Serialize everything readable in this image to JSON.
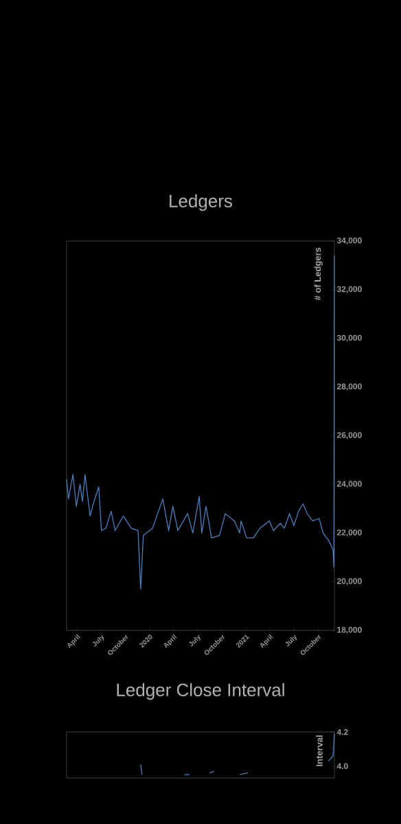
{
  "chart_data": [
    {
      "type": "line",
      "title": "Ledgers",
      "ylabel": "# of Ledgers",
      "color": "#4a7fc1",
      "x": [
        "2019-02-20",
        "2019-02-27",
        "2019-03-16",
        "2019-03-29",
        "2019-04-12",
        "2019-04-21",
        "2019-05-01",
        "2019-05-20",
        "2019-06-04",
        "2019-06-22",
        "2019-07-02",
        "2019-07-19",
        "2019-08-08",
        "2019-08-23",
        "2019-09-23",
        "2019-10-23",
        "2019-11-18",
        "2019-11-28",
        "2019-12-08",
        "2020-01-12",
        "2020-02-20",
        "2020-03-13",
        "2020-03-29",
        "2020-04-17",
        "2020-05-24",
        "2020-06-13",
        "2020-07-07",
        "2020-07-17",
        "2020-08-02",
        "2020-08-23",
        "2020-09-22",
        "2020-10-14",
        "2020-11-17",
        "2020-12-08",
        "2020-12-13",
        "2021-01-03",
        "2021-01-29",
        "2021-02-23",
        "2021-03-30",
        "2021-04-15",
        "2021-05-11",
        "2021-05-26",
        "2021-06-15",
        "2021-07-01",
        "2021-07-19",
        "2021-08-05",
        "2021-08-21",
        "2021-09-10",
        "2021-10-05",
        "2021-10-20",
        "2021-11-10",
        "2021-11-27",
        "2021-11-30",
        "2021-12-02"
      ],
      "values": [
        24200,
        23400,
        24400,
        23100,
        24000,
        23300,
        24400,
        22700,
        23300,
        23900,
        22100,
        22200,
        22900,
        22100,
        22700,
        22200,
        22100,
        19700,
        21900,
        22200,
        23400,
        22100,
        23100,
        22100,
        22800,
        22000,
        23500,
        22000,
        23100,
        21800,
        21900,
        22800,
        22500,
        22000,
        22500,
        21800,
        21800,
        22200,
        22500,
        22100,
        22400,
        22200,
        22800,
        22300,
        22900,
        23200,
        22800,
        22500,
        22600,
        22000,
        21700,
        21300,
        20600,
        33400
      ],
      "xlim": [
        "2019-02-20",
        "2021-12-02"
      ],
      "ylim": [
        18000,
        34000
      ],
      "xticks": [
        {
          "value": "2019-04-01",
          "label": "April"
        },
        {
          "value": "2019-07-01",
          "label": "July"
        },
        {
          "value": "2019-10-01",
          "label": "October"
        },
        {
          "value": "2020-01-01",
          "label": "2020"
        },
        {
          "value": "2020-04-01",
          "label": "April"
        },
        {
          "value": "2020-07-01",
          "label": "July"
        },
        {
          "value": "2020-10-01",
          "label": "October"
        },
        {
          "value": "2021-01-01",
          "label": "2021"
        },
        {
          "value": "2021-04-01",
          "label": "April"
        },
        {
          "value": "2021-07-01",
          "label": "July"
        },
        {
          "value": "2021-10-01",
          "label": "October"
        }
      ],
      "yticks": [
        {
          "value": 18000,
          "label": "18,000"
        },
        {
          "value": 20000,
          "label": "20,000"
        },
        {
          "value": 22000,
          "label": "22,000"
        },
        {
          "value": 24000,
          "label": "24,000"
        },
        {
          "value": 26000,
          "label": "26,000"
        },
        {
          "value": 28000,
          "label": "28,000"
        },
        {
          "value": 30000,
          "label": "30,000"
        },
        {
          "value": 32000,
          "label": "32,000"
        },
        {
          "value": 34000,
          "label": "34,000"
        }
      ]
    },
    {
      "type": "line",
      "title": "Ledger Close Interval",
      "ylabel": "Interval",
      "color": "#4a7fc1",
      "x": [
        "2019-11-28",
        "2019-12-03",
        "2020-01-15",
        "2020-05-10",
        "2020-06-01",
        "2020-07-01",
        "2020-08-15",
        "2020-09-01",
        "2020-10-01",
        "2020-12-08",
        "2021-01-08",
        "2021-01-20",
        "2021-11-10",
        "2021-11-27",
        "2021-12-02"
      ],
      "values": [
        4.01,
        3.95,
        null,
        3.95,
        3.95,
        null,
        3.96,
        3.97,
        null,
        3.95,
        3.96,
        null,
        4.03,
        4.06,
        4.19
      ],
      "xlim": [
        "2019-02-20",
        "2021-12-02"
      ],
      "ylim": [
        3.93,
        4.2
      ],
      "yticks": [
        {
          "value": 4.0,
          "label": "4.0"
        },
        {
          "value": 4.2,
          "label": "4.2"
        }
      ]
    }
  ]
}
